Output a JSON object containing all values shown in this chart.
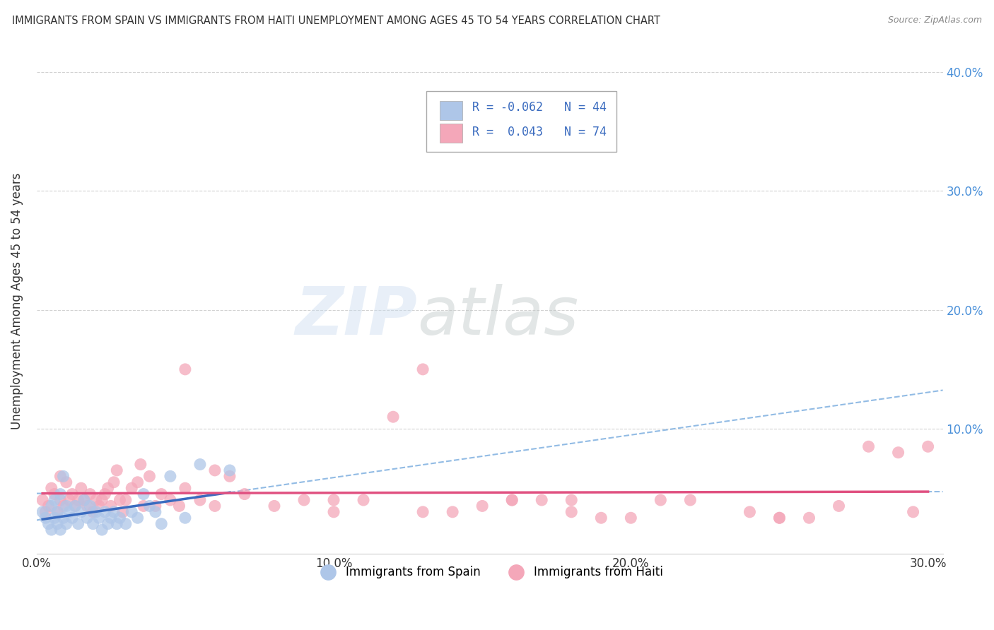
{
  "title": "IMMIGRANTS FROM SPAIN VS IMMIGRANTS FROM HAITI UNEMPLOYMENT AMONG AGES 45 TO 54 YEARS CORRELATION CHART",
  "source": "Source: ZipAtlas.com",
  "ylabel": "Unemployment Among Ages 45 to 54 years",
  "xlim": [
    0.0,
    0.305
  ],
  "ylim": [
    -0.005,
    0.42
  ],
  "xticks": [
    0.0,
    0.1,
    0.2,
    0.3
  ],
  "xticklabels": [
    "0.0%",
    "10.0%",
    "20.0%",
    "30.0%"
  ],
  "yticks": [
    0.1,
    0.2,
    0.3,
    0.4
  ],
  "yticklabels": [
    "10.0%",
    "20.0%",
    "30.0%",
    "40.0%"
  ],
  "R_spain": -0.062,
  "N_spain": 44,
  "R_haiti": 0.043,
  "N_haiti": 74,
  "color_spain": "#aec6e8",
  "color_haiti": "#f4a7b9",
  "line_spain": "#3a6bbf",
  "line_haiti": "#e05080",
  "dashed_line_color": "#7fb0e0",
  "background_color": "#ffffff",
  "grid_color": "#cccccc",
  "spain_scatter_x": [
    0.002,
    0.003,
    0.004,
    0.005,
    0.005,
    0.006,
    0.006,
    0.007,
    0.007,
    0.008,
    0.008,
    0.009,
    0.009,
    0.01,
    0.01,
    0.011,
    0.012,
    0.013,
    0.014,
    0.015,
    0.016,
    0.017,
    0.018,
    0.019,
    0.02,
    0.021,
    0.022,
    0.023,
    0.024,
    0.025,
    0.026,
    0.027,
    0.028,
    0.03,
    0.032,
    0.034,
    0.036,
    0.038,
    0.04,
    0.042,
    0.045,
    0.05,
    0.055,
    0.065
  ],
  "spain_scatter_y": [
    0.03,
    0.025,
    0.02,
    0.035,
    0.015,
    0.04,
    0.025,
    0.03,
    0.02,
    0.045,
    0.015,
    0.06,
    0.025,
    0.035,
    0.02,
    0.03,
    0.025,
    0.035,
    0.02,
    0.03,
    0.04,
    0.025,
    0.035,
    0.02,
    0.03,
    0.025,
    0.015,
    0.03,
    0.02,
    0.025,
    0.03,
    0.02,
    0.025,
    0.02,
    0.03,
    0.025,
    0.045,
    0.035,
    0.03,
    0.02,
    0.06,
    0.025,
    0.07,
    0.065
  ],
  "haiti_scatter_x": [
    0.002,
    0.003,
    0.004,
    0.005,
    0.006,
    0.007,
    0.008,
    0.008,
    0.009,
    0.01,
    0.011,
    0.012,
    0.013,
    0.014,
    0.015,
    0.016,
    0.017,
    0.018,
    0.019,
    0.02,
    0.021,
    0.022,
    0.023,
    0.024,
    0.025,
    0.026,
    0.027,
    0.028,
    0.029,
    0.03,
    0.032,
    0.034,
    0.036,
    0.038,
    0.04,
    0.042,
    0.045,
    0.048,
    0.05,
    0.055,
    0.06,
    0.065,
    0.07,
    0.08,
    0.09,
    0.1,
    0.11,
    0.12,
    0.13,
    0.14,
    0.15,
    0.16,
    0.17,
    0.18,
    0.19,
    0.2,
    0.21,
    0.22,
    0.24,
    0.25,
    0.26,
    0.27,
    0.28,
    0.29,
    0.295,
    0.3,
    0.13,
    0.16,
    0.05,
    0.1,
    0.18,
    0.25,
    0.035,
    0.06
  ],
  "haiti_scatter_y": [
    0.04,
    0.03,
    0.035,
    0.05,
    0.045,
    0.03,
    0.04,
    0.06,
    0.035,
    0.055,
    0.04,
    0.045,
    0.035,
    0.04,
    0.05,
    0.04,
    0.035,
    0.045,
    0.03,
    0.04,
    0.035,
    0.04,
    0.045,
    0.05,
    0.035,
    0.055,
    0.065,
    0.04,
    0.03,
    0.04,
    0.05,
    0.055,
    0.035,
    0.06,
    0.035,
    0.045,
    0.04,
    0.035,
    0.05,
    0.04,
    0.035,
    0.06,
    0.045,
    0.035,
    0.04,
    0.03,
    0.04,
    0.11,
    0.03,
    0.03,
    0.035,
    0.04,
    0.04,
    0.03,
    0.025,
    0.025,
    0.04,
    0.04,
    0.03,
    0.025,
    0.025,
    0.035,
    0.085,
    0.08,
    0.03,
    0.085,
    0.15,
    0.04,
    0.15,
    0.04,
    0.04,
    0.025,
    0.07,
    0.065
  ]
}
